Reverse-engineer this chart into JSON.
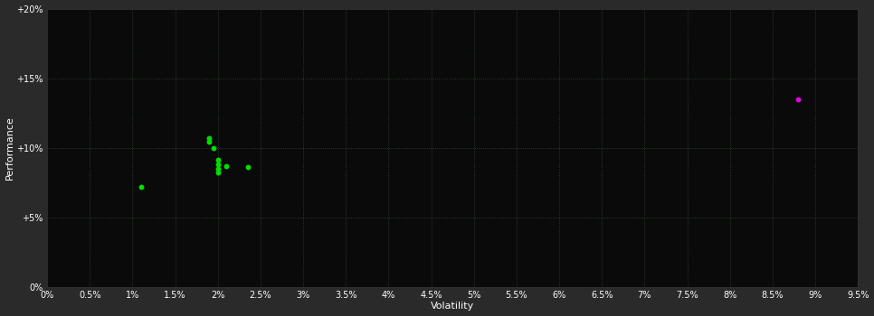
{
  "background_color": "#2a2a2a",
  "plot_bg_color": "#0a0a0a",
  "grid_color": "#3a3a3a",
  "axis_label_color": "#ffffff",
  "tick_color": "#ffffff",
  "xlabel": "Volatility",
  "ylabel": "Performance",
  "xlim": [
    0.0,
    0.095
  ],
  "ylim": [
    0.0,
    0.2
  ],
  "xticks": [
    0.0,
    0.005,
    0.01,
    0.015,
    0.02,
    0.025,
    0.03,
    0.035,
    0.04,
    0.045,
    0.05,
    0.055,
    0.06,
    0.065,
    0.07,
    0.075,
    0.08,
    0.085,
    0.09,
    0.095
  ],
  "yticks": [
    0.0,
    0.05,
    0.1,
    0.15,
    0.2
  ],
  "xtick_labels": [
    "0%",
    "0.5%",
    "1%",
    "1.5%",
    "2%",
    "2.5%",
    "3%",
    "3.5%",
    "4%",
    "4.5%",
    "5%",
    "5.5%",
    "6%",
    "6.5%",
    "7%",
    "7.5%",
    "8%",
    "8.5%",
    "9%",
    "9.5%"
  ],
  "ytick_labels": [
    "0%",
    "+5%",
    "+10%",
    "+15%",
    "+20%"
  ],
  "green_points": [
    [
      0.011,
      0.072
    ],
    [
      0.019,
      0.107
    ],
    [
      0.019,
      0.104
    ],
    [
      0.0195,
      0.1
    ],
    [
      0.02,
      0.091
    ],
    [
      0.02,
      0.088
    ],
    [
      0.02,
      0.085
    ],
    [
      0.02,
      0.082
    ],
    [
      0.021,
      0.087
    ],
    [
      0.0235,
      0.086
    ]
  ],
  "magenta_points": [
    [
      0.088,
      0.135
    ]
  ],
  "green_color": "#00dd00",
  "magenta_color": "#dd00dd",
  "marker_size": 18
}
